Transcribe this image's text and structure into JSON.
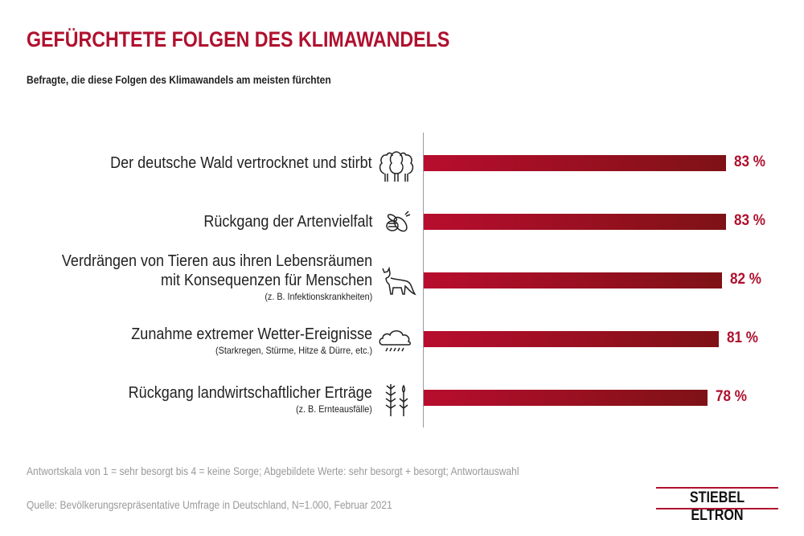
{
  "chart_data": {
    "type": "bar",
    "orientation": "horizontal",
    "title": "GEFÜRCHTETE FOLGEN DES KLIMAWANDELS",
    "subtitle": "Befragte, die diese Folgen des Klimawandels am meisten fürchten",
    "categories": [
      {
        "lines": [
          "Der deutsche Wald vertrocknet und stirbt"
        ],
        "note": "",
        "icon": "trees-icon"
      },
      {
        "lines": [
          "Rückgang der Artenvielfalt"
        ],
        "note": "",
        "icon": "bee-icon"
      },
      {
        "lines": [
          "Verdrängen von Tieren aus ihren Lebensräumen",
          "mit Konsequenzen für Menschen"
        ],
        "note": "(z. B. Infektionskrankheiten)",
        "icon": "fox-icon"
      },
      {
        "lines": [
          "Zunahme extremer Wetter-Ereignisse"
        ],
        "note": "(Starkregen, Stürme, Hitze & Dürre, etc.)",
        "icon": "rain-cloud-icon"
      },
      {
        "lines": [
          "Rückgang landwirtschaftlicher Erträge"
        ],
        "note": "(z. B. Ernteausfälle)",
        "icon": "crops-icon"
      }
    ],
    "values": [
      83,
      83,
      82,
      81,
      78
    ],
    "value_labels": [
      "83 %",
      "83 %",
      "82 %",
      "81 %",
      "78 %"
    ],
    "unit": "%",
    "xlim": [
      0,
      100
    ],
    "grid": false,
    "bar_color_start": "#b80d2e",
    "bar_color_end": "#7e1216"
  },
  "footer": {
    "scale_note": "Antwortskala von 1 = sehr besorgt bis 4 = keine Sorge; Abgebildete Werte: sehr besorgt + besorgt; Antwortauswahl",
    "source": "Quelle: Bevölkerungsrepräsentative Umfrage in Deutschland, N=1.000, Februar 2021"
  },
  "logo": "STIEBEL ELTRON"
}
